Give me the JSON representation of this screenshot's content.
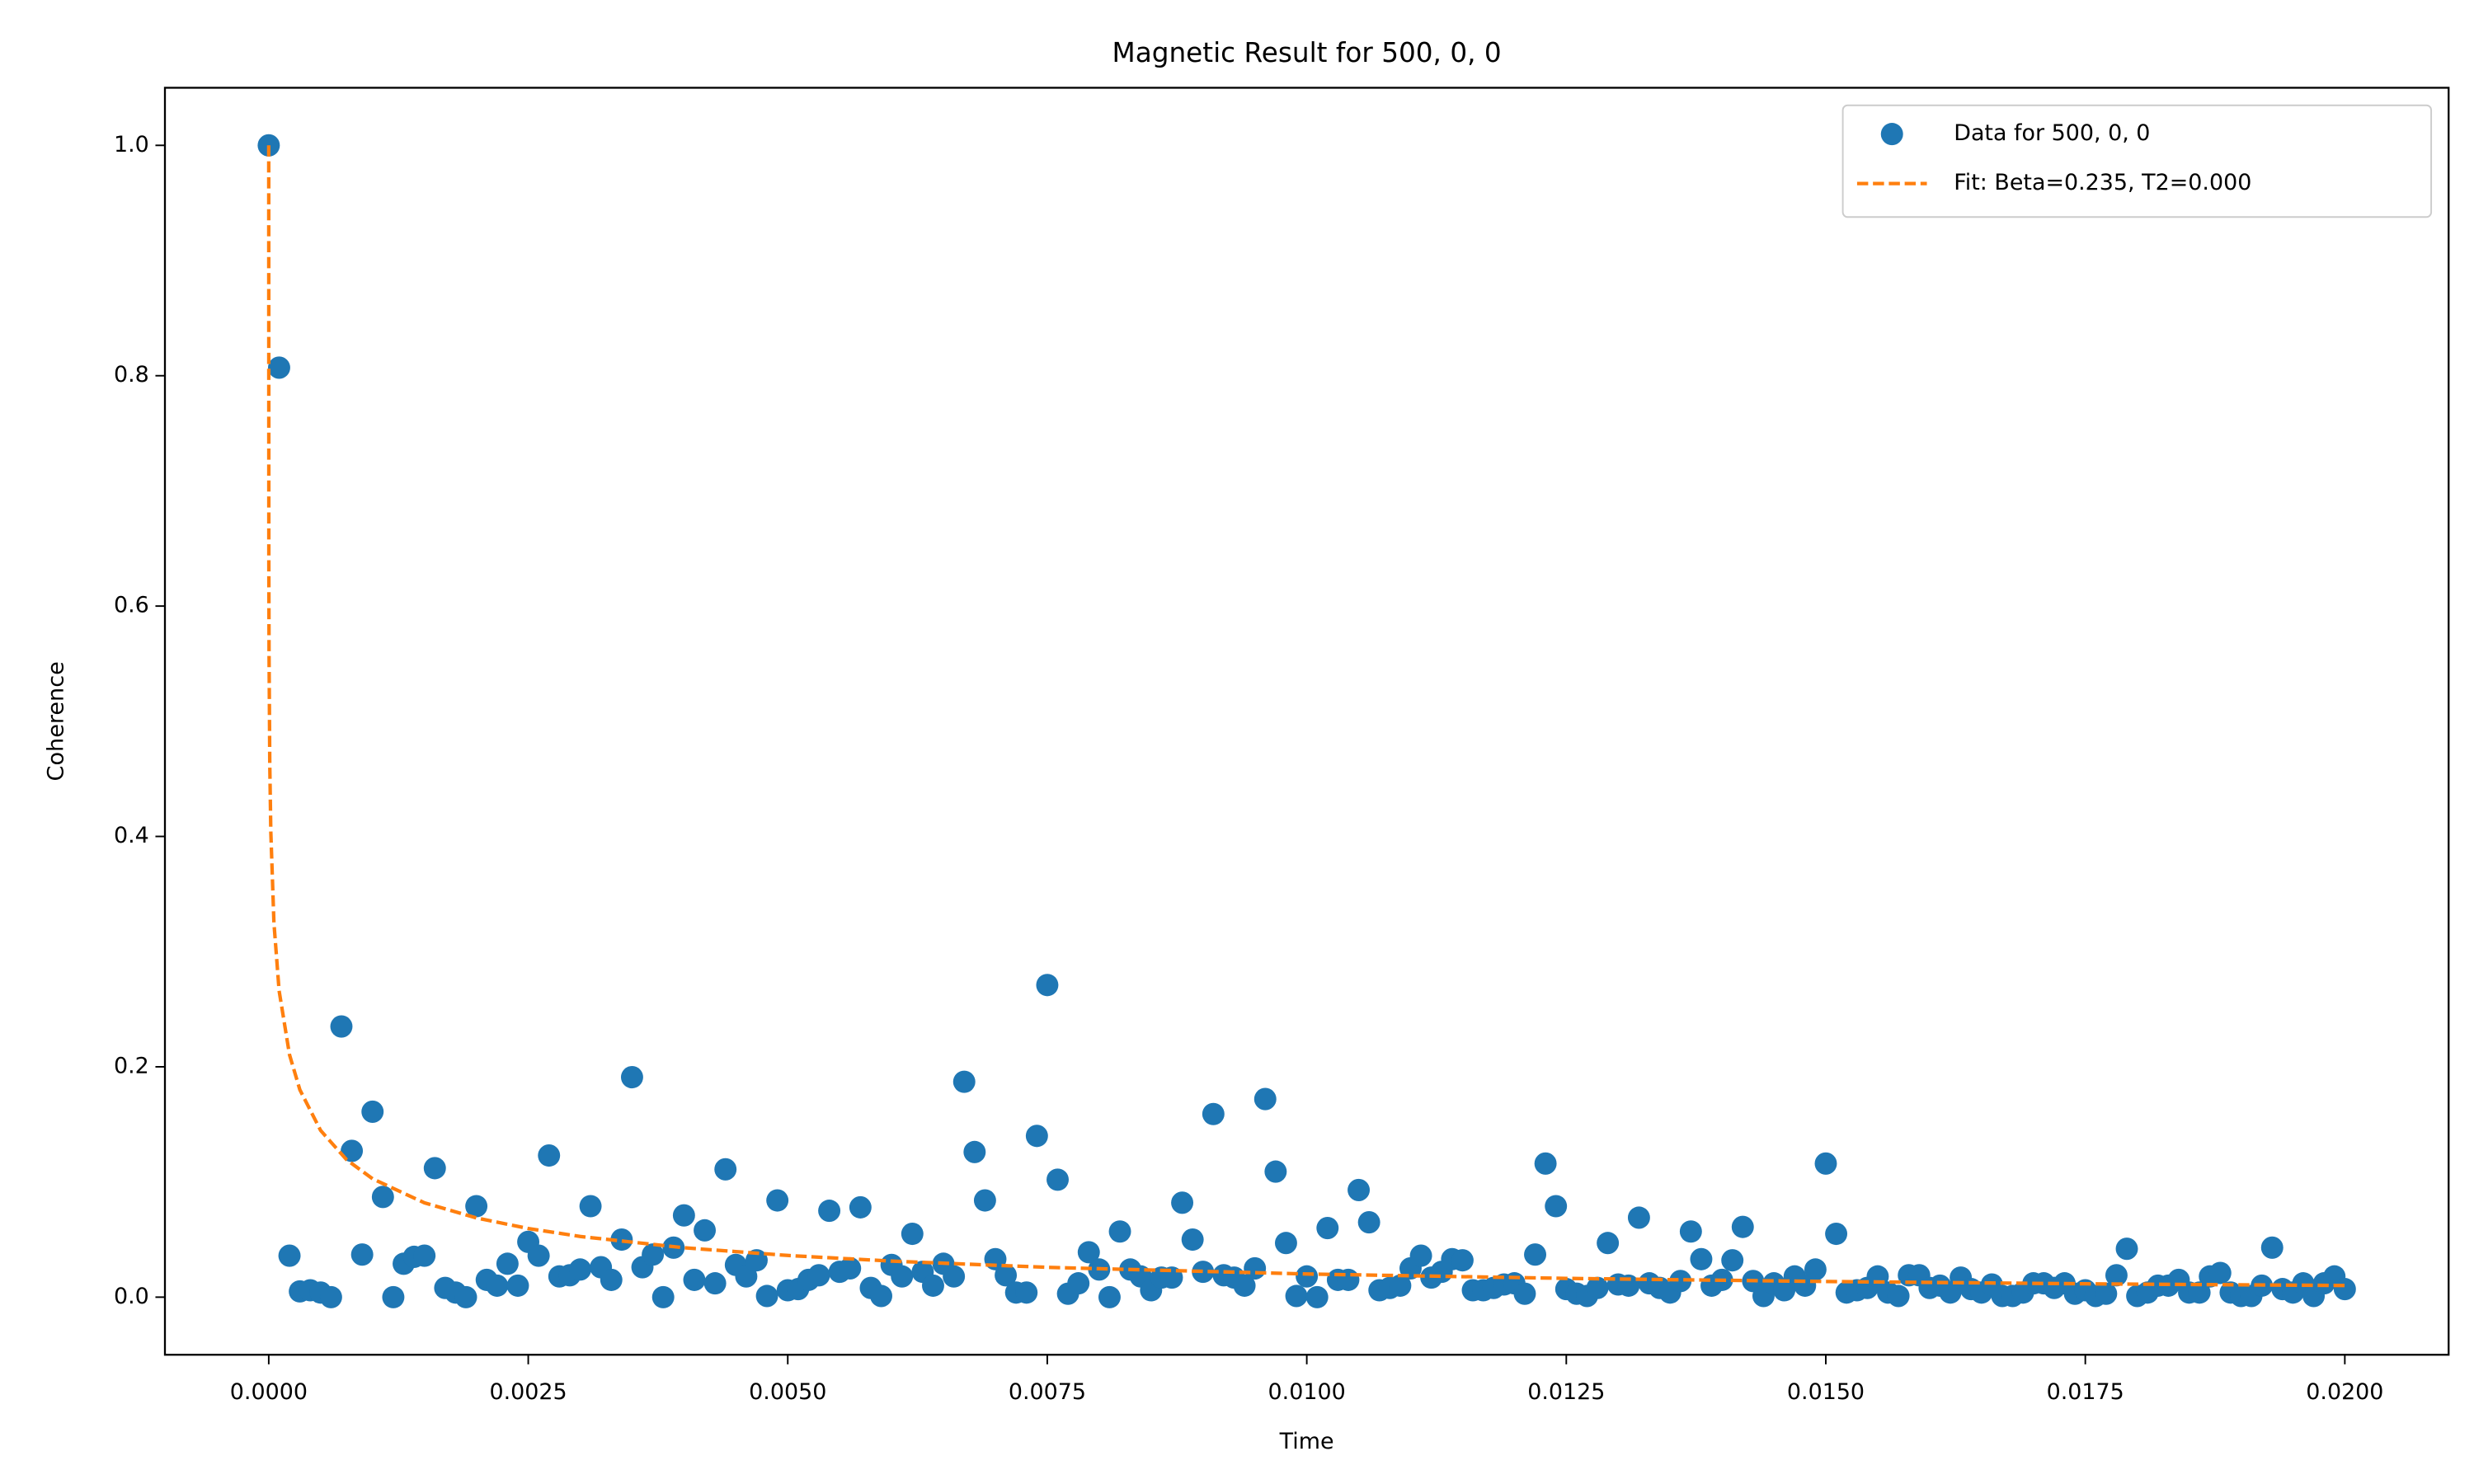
{
  "chart_data": {
    "type": "scatter",
    "title": "Magnetic Result for 500, 0, 0",
    "x_label": "Time",
    "y_label": "Coherence",
    "xlim": [
      -0.001,
      0.021
    ],
    "ylim": [
      -0.05,
      1.05
    ],
    "xticks": [
      {
        "value": 0,
        "label": "0.0000"
      },
      {
        "value": 0.0025,
        "label": "0.0025"
      },
      {
        "value": 0.005,
        "label": "0.0050"
      },
      {
        "value": 0.0075,
        "label": "0.0075"
      },
      {
        "value": 0.01,
        "label": "0.0100"
      },
      {
        "value": 0.0125,
        "label": "0.0125"
      },
      {
        "value": 0.015,
        "label": "0.0150"
      },
      {
        "value": 0.0175,
        "label": "0.0175"
      },
      {
        "value": 0.02,
        "label": "0.0200"
      }
    ],
    "yticks": [
      {
        "value": 0,
        "label": "0.0"
      },
      {
        "value": 0.2,
        "label": "0.2"
      },
      {
        "value": 0.4,
        "label": "0.4"
      },
      {
        "value": 0.6,
        "label": "0.6"
      },
      {
        "value": 0.8,
        "label": "0.8"
      },
      {
        "value": 1,
        "label": "1.0"
      }
    ],
    "grid": false,
    "legend": "upper right",
    "series": [
      {
        "name": "Data for 500, 0, 0",
        "type": "scatter",
        "color": "#1f77b4",
        "x": [
          0,
          0.0001,
          0.0002,
          0.0003,
          0.0004,
          0.0005,
          0.0006,
          0.0007,
          0.0008,
          0.0009,
          0.001,
          0.0011,
          0.0012,
          0.0013,
          0.0014,
          0.0015,
          0.0016,
          0.0017,
          0.0018,
          0.0019,
          0.002,
          0.0021,
          0.0022,
          0.0023,
          0.0024,
          0.0025,
          0.0026,
          0.0027,
          0.0028,
          0.0029,
          0.003,
          0.0031,
          0.0032,
          0.0033,
          0.0034,
          0.0035,
          0.0036,
          0.0037,
          0.0038,
          0.0039,
          0.004,
          0.0041,
          0.0042,
          0.0043,
          0.0044,
          0.0045,
          0.0046,
          0.0047,
          0.0048,
          0.0049,
          0.005,
          0.0051,
          0.0052,
          0.0053,
          0.0054,
          0.0055,
          0.0056,
          0.0057,
          0.0058,
          0.0059,
          0.006,
          0.0061,
          0.0062,
          0.0063,
          0.0064,
          0.0065,
          0.0066,
          0.0067,
          0.0068,
          0.0069,
          0.007,
          0.0071,
          0.0072,
          0.0073,
          0.0074,
          0.0075,
          0.0076,
          0.0077,
          0.0078,
          0.0079,
          0.008,
          0.0081,
          0.0082,
          0.0083,
          0.0084,
          0.0085,
          0.0086,
          0.0087,
          0.0088,
          0.0089,
          0.009,
          0.0091,
          0.0092,
          0.0093,
          0.0094,
          0.0095,
          0.0096,
          0.0097,
          0.0098,
          0.0099,
          0.01,
          0.0101,
          0.0102,
          0.0103,
          0.0104,
          0.0105,
          0.0106,
          0.0107,
          0.0108,
          0.0109,
          0.011,
          0.0111,
          0.0112,
          0.0113,
          0.0114,
          0.0115,
          0.0116,
          0.0117,
          0.0118,
          0.0119,
          0.012,
          0.0121,
          0.0122,
          0.0123,
          0.0124,
          0.0125,
          0.0126,
          0.0127,
          0.0128,
          0.0129,
          0.013,
          0.0131,
          0.0132,
          0.0133,
          0.0134,
          0.0135,
          0.0136,
          0.0137,
          0.0138,
          0.0139,
          0.014,
          0.0141,
          0.0142,
          0.0143,
          0.0144,
          0.0145,
          0.0146,
          0.0147,
          0.0148,
          0.0149,
          0.015,
          0.0151,
          0.0152,
          0.0153,
          0.0154,
          0.0155,
          0.0156,
          0.0157,
          0.0158,
          0.0159,
          0.016,
          0.0161,
          0.0162,
          0.0163,
          0.0164,
          0.0165,
          0.0166,
          0.0167,
          0.0168,
          0.0169,
          0.017,
          0.0171,
          0.0172,
          0.0173,
          0.0174,
          0.0175,
          0.0176,
          0.0177,
          0.0178,
          0.0179,
          0.018,
          0.0181,
          0.0182,
          0.0183,
          0.0184,
          0.0185,
          0.0186,
          0.0187,
          0.0188,
          0.0189,
          0.019,
          0.0191,
          0.0192,
          0.0193,
          0.0194,
          0.0195,
          0.0196,
          0.0197,
          0.0198,
          0.0199,
          0.02
        ],
        "values": [
          1,
          0.807,
          0.036,
          0.005,
          0.006,
          0.004,
          0,
          0.235,
          0.127,
          0.037,
          0.161,
          0.087,
          0,
          0.029,
          0.035,
          0.036,
          0.112,
          0.008,
          0.004,
          0,
          0.079,
          0.015,
          0.01,
          0.029,
          0.01,
          0.048,
          0.036,
          0.123,
          0.018,
          0.019,
          0.024,
          0.079,
          0.026,
          0.015,
          0.05,
          0.191,
          0.026,
          0.037,
          0,
          0.043,
          0.071,
          0.015,
          0.058,
          0.012,
          0.111,
          0.028,
          0.018,
          0.032,
          0.001,
          0.084,
          0.006,
          0.007,
          0.015,
          0.019,
          0.075,
          0.022,
          0.025,
          0.078,
          0.008,
          0.001,
          0.028,
          0.018,
          0.055,
          0.022,
          0.01,
          0.029,
          0.018,
          0.187,
          0.126,
          0.084,
          0.033,
          0.019,
          0.004,
          0.004,
          0.14,
          0.271,
          0.102,
          0.003,
          0.012,
          0.039,
          0.024,
          0,
          0.057,
          0.024,
          0.018,
          0.006,
          0.017,
          0.017,
          0.082,
          0.05,
          0.022,
          0.159,
          0.019,
          0.017,
          0.01,
          0.025,
          0.172,
          0.109,
          0.047,
          0.001,
          0.018,
          0,
          0.06,
          0.015,
          0.015,
          0.093,
          0.065,
          0.006,
          0.008,
          0.01,
          0.025,
          0.036,
          0.017,
          0.022,
          0.033,
          0.032,
          0.006,
          0.006,
          0.008,
          0.011,
          0.012,
          0.003,
          0.037,
          0.116,
          0.079,
          0.007,
          0.003,
          0.001,
          0.008,
          0.047,
          0.011,
          0.01,
          0.069,
          0.012,
          0.008,
          0.004,
          0.014,
          0.057,
          0.033,
          0.01,
          0.015,
          0.032,
          0.061,
          0.014,
          0.001,
          0.012,
          0.006,
          0.018,
          0.01,
          0.024,
          0.116,
          0.055,
          0.004,
          0.006,
          0.008,
          0.018,
          0.004,
          0.001,
          0.019,
          0.019,
          0.008,
          0.01,
          0.004,
          0.017,
          0.007,
          0.004,
          0.011,
          0.001,
          0.001,
          0.004,
          0.012,
          0.012,
          0.008,
          0.012,
          0.003,
          0.006,
          0.001,
          0.003,
          0.019,
          0.042,
          0.001,
          0.004,
          0.01,
          0.01,
          0.015,
          0.004,
          0.004,
          0.018,
          0.021,
          0.004,
          0.001,
          0.001,
          0.01,
          0.043,
          0.007,
          0.004,
          0.012,
          0.001,
          0.012,
          0.018,
          0.007
        ]
      },
      {
        "name": "Fit: Beta=0.235, T2=0.000",
        "type": "line",
        "color": "#ff7f0e",
        "linestyle": "dashed",
        "x": [
          0,
          1e-06,
          3e-06,
          1e-05,
          2e-05,
          5e-05,
          0.0001,
          0.0002,
          0.0003,
          0.0005,
          0.00075,
          0.001,
          0.0015,
          0.002,
          0.0025,
          0.003,
          0.004,
          0.005,
          0.006,
          0.0075,
          0.01,
          0.0125,
          0.015,
          0.0175,
          0.02
        ],
        "values": [
          1,
          0.638,
          0.559,
          0.463,
          0.404,
          0.325,
          0.266,
          0.2105,
          0.18,
          0.1447,
          0.1193,
          0.1028,
          0.0819,
          0.0688,
          0.0596,
          0.0527,
          0.0429,
          0.0362,
          0.0313,
          0.0259,
          0.0201,
          0.0163,
          0.0136,
          0.0116,
          0.0101
        ]
      }
    ]
  }
}
